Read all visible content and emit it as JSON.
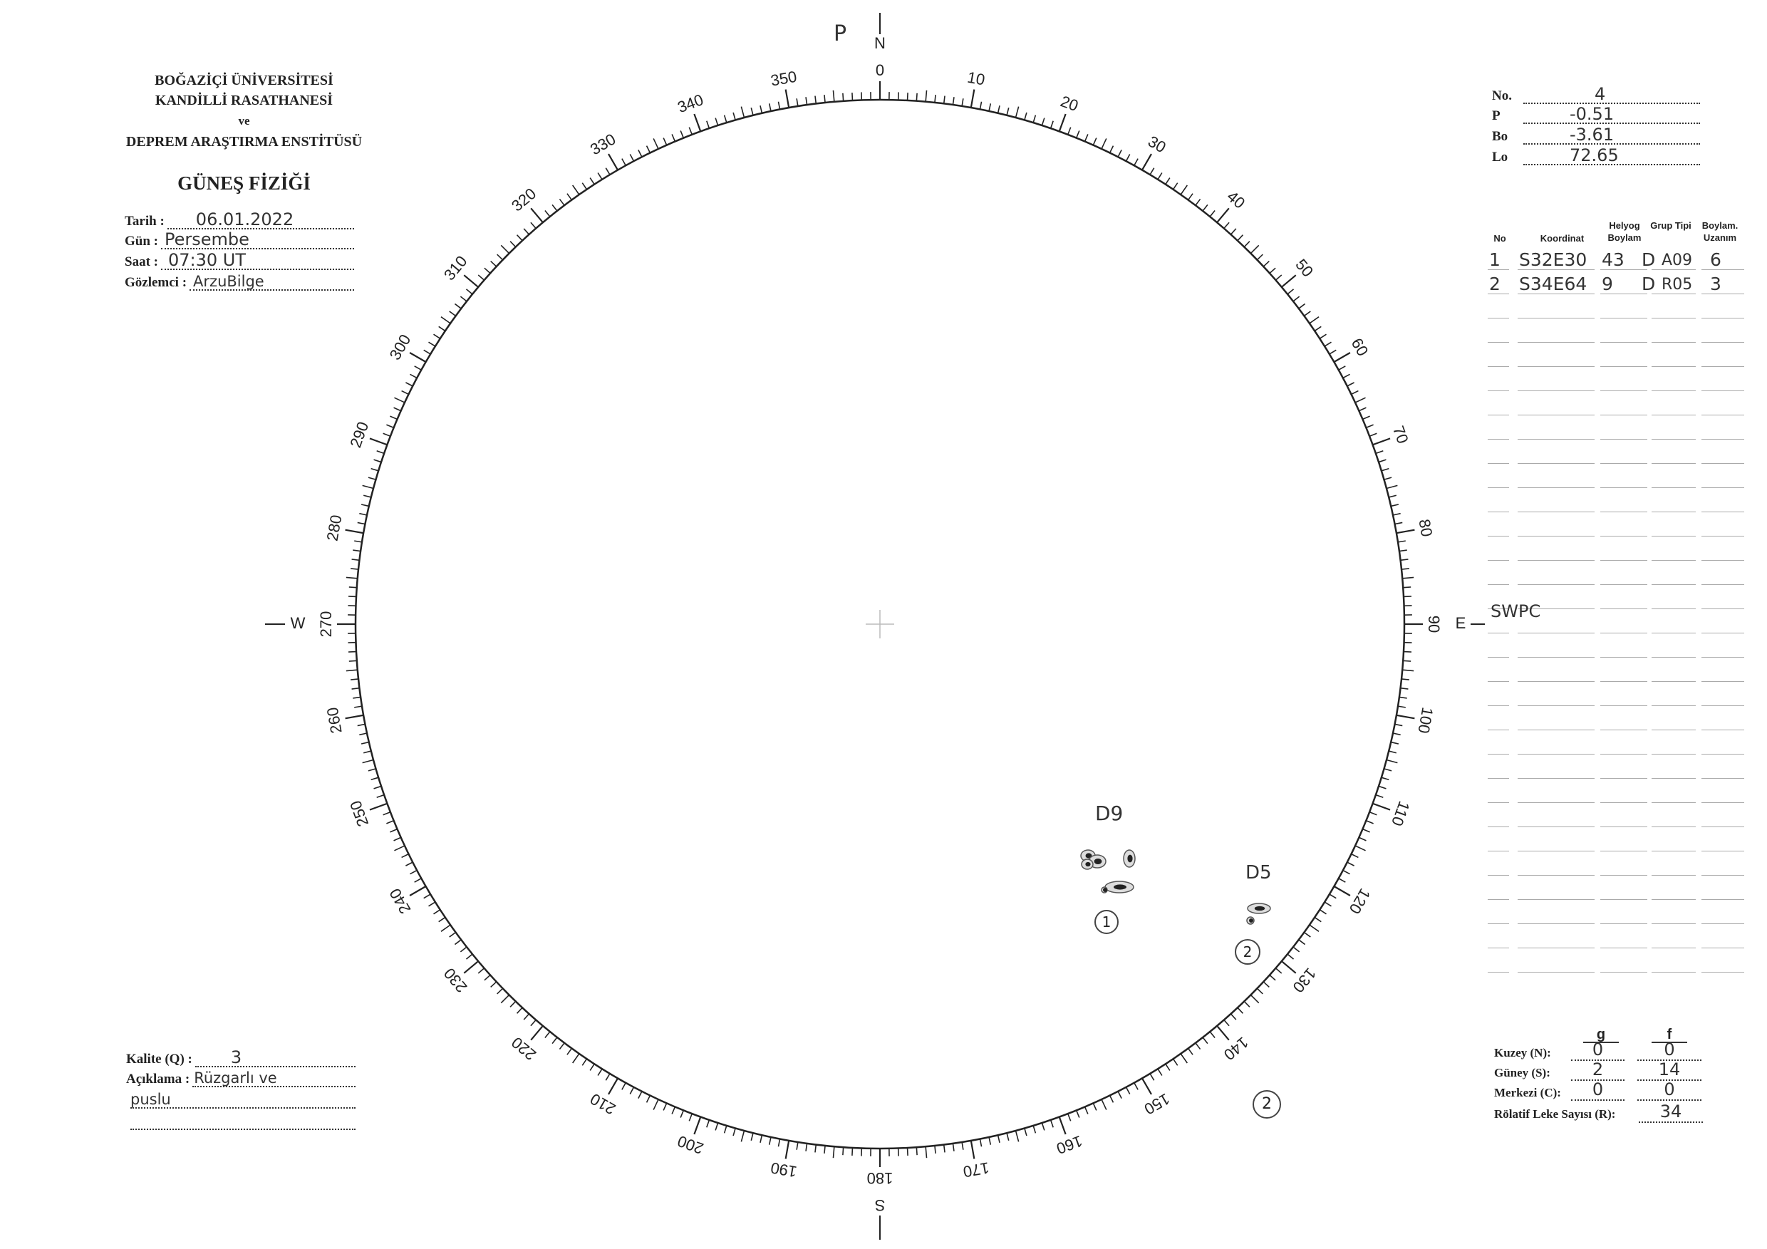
{
  "institution": {
    "line1": "BOĞAZİÇİ ÜNİVERSİTESİ",
    "line2": "KANDİLLİ RASATHANESİ",
    "line3": "ve",
    "line4": "DEPREM ARAŞTIRMA ENSTİTÜSÜ",
    "department": "GÜNEŞ FİZİĞİ"
  },
  "observation": {
    "date_label": "Tarih :",
    "date": "06.01.2022",
    "day_label": "Gün :",
    "day": "Persembe",
    "time_label": "Saat :",
    "time": "07:30 UT",
    "observer_label": "Gözlemci :",
    "observer": "ArzuBilge"
  },
  "parameters": {
    "no_label": "No.",
    "no": "4",
    "p_label": "P",
    "p": "-0.51",
    "bo_label": "Bo",
    "bo": "-3.61",
    "lo_label": "Lo",
    "lo": "72.65"
  },
  "groups_table": {
    "headers": [
      "No",
      "Koordinat",
      "Helyog Boylam",
      "Grup Tipi",
      "Boylam. Uzanım"
    ],
    "rows": [
      [
        "1",
        "S32E30",
        "43",
        "D",
        "A09",
        "6"
      ],
      [
        "2",
        "S34E64",
        "9",
        "D",
        "R05",
        "3"
      ]
    ],
    "empty_rows": 28
  },
  "disk": {
    "north_label": "N",
    "south_label": "S",
    "east_label": "E",
    "west_label": "W",
    "p_mark": "P",
    "east_note": "SWPC",
    "tick_labels": [
      "0",
      "10",
      "20",
      "30",
      "40",
      "50",
      "60",
      "70",
      "80",
      "90",
      "100",
      "110",
      "120",
      "130",
      "140",
      "150",
      "160",
      "170",
      "180",
      "190",
      "200",
      "210",
      "220",
      "230",
      "240",
      "250",
      "260",
      "270",
      "280",
      "290",
      "300",
      "310",
      "320",
      "330",
      "340",
      "350"
    ],
    "groups": [
      {
        "label": "D9",
        "number": "1"
      },
      {
        "label": "D5",
        "number": "2"
      }
    ],
    "outside_note": "2"
  },
  "quality": {
    "quality_label": "Kalite (Q) :",
    "quality": "3",
    "remark_label": "Açıklama :",
    "remark_line1": "Rüzgarlı ve",
    "remark_line2": "puslu"
  },
  "counts": {
    "g_header": "g",
    "f_header": "f",
    "north_label": "Kuzey (N):",
    "north_g": "0",
    "north_f": "0",
    "south_label": "Güney (S):",
    "south_g": "2",
    "south_f": "14",
    "center_label": "Merkezi (C):",
    "center_g": "0",
    "center_f": "0",
    "r_label": "Rölatif Leke Sayısı (R):",
    "r": "34"
  }
}
